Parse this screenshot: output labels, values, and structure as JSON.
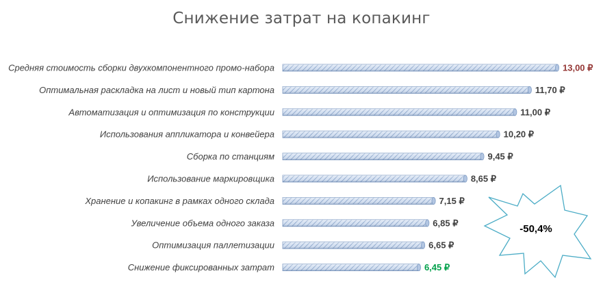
{
  "chart_data": {
    "type": "bar",
    "orientation": "horizontal",
    "title": "Снижение затрат на копакинг",
    "categories": [
      "Средняя стоимость сборки двухкомпонентного промо-набора",
      "Оптимальная раскладка на лист и новый тип картона",
      "Автоматизация и оптимизация по конструкции",
      "Использования аппликатора и конвейера",
      "Сборка по станциям",
      "Использование маркировщика",
      "Хранение и копакинг в рамках одного склада",
      "Увеличение объема одного заказа",
      "Оптимизация паллетизации",
      "Снижение фиксированных затрат"
    ],
    "values": [
      13.0,
      11.7,
      11.0,
      10.2,
      9.45,
      8.65,
      7.15,
      6.85,
      6.65,
      6.45
    ],
    "value_labels": [
      "13,00 ₽",
      "11,70 ₽",
      "11,00 ₽",
      "10,20 ₽",
      "9,45 ₽",
      "8,65 ₽",
      "7,15 ₽",
      "6,85 ₽",
      "6,65 ₽",
      "6,45 ₽"
    ],
    "label_colors": [
      "#953735",
      "#404040",
      "#404040",
      "#404040",
      "#404040",
      "#404040",
      "#404040",
      "#404040",
      "#404040",
      "#00A04A"
    ],
    "bar_color": "#C5D5EC",
    "bar_edge_color": "#7F9CC4",
    "xlim": [
      0,
      13.2
    ],
    "grid": false,
    "legend": "none",
    "annotation": {
      "text": "-50,4%",
      "shape": "starburst",
      "outline_color": "#4BACC6"
    }
  }
}
